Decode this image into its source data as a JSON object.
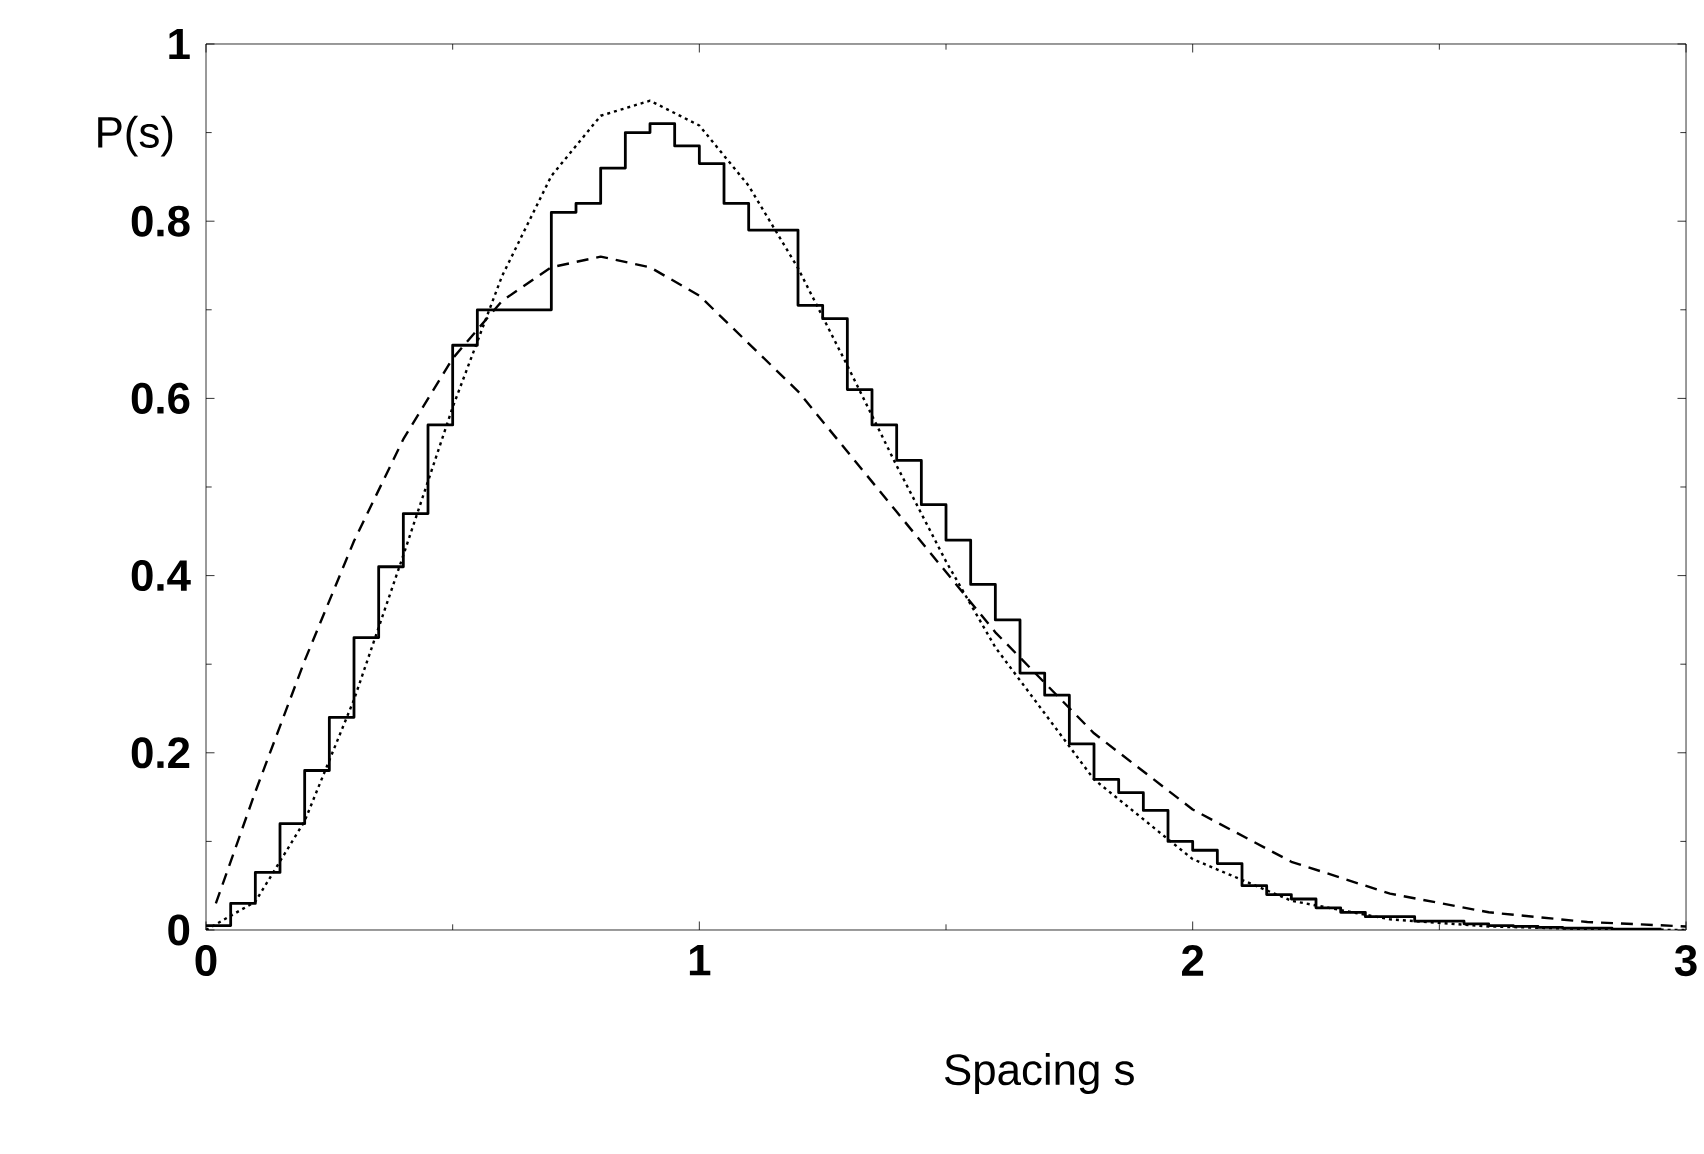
{
  "chart_data": {
    "type": "step",
    "xlabel": "Spacing s",
    "ylabel": "P(s)",
    "color": "#000000",
    "x": [
      0,
      0.05,
      0.1,
      0.15,
      0.2,
      0.25,
      0.3,
      0.35,
      0.4,
      0.45,
      0.5,
      0.55,
      0.6,
      0.65,
      0.7,
      0.75,
      0.8,
      0.85,
      0.9,
      0.95,
      1.0,
      1.05,
      1.1,
      1.15,
      1.2,
      1.25,
      1.3,
      1.35,
      1.4,
      1.45,
      1.5,
      1.55,
      1.6,
      1.65,
      1.7,
      1.75,
      1.8,
      1.85,
      1.9,
      1.95,
      2.0,
      2.05,
      2.1,
      2.15,
      2.2,
      2.25,
      2.3,
      2.35,
      2.4,
      2.45,
      2.5,
      2.55,
      2.6,
      2.65,
      2.7,
      2.75,
      2.8,
      2.85,
      2.9,
      2.95
    ],
    "values": [
      0.005,
      0.03,
      0.065,
      0.12,
      0.18,
      0.24,
      0.33,
      0.41,
      0.47,
      0.57,
      0.66,
      0.7,
      0.7,
      0.7,
      0.81,
      0.82,
      0.86,
      0.9,
      0.91,
      0.885,
      0.865,
      0.82,
      0.79,
      0.79,
      0.705,
      0.69,
      0.61,
      0.57,
      0.53,
      0.48,
      0.44,
      0.39,
      0.35,
      0.29,
      0.265,
      0.21,
      0.17,
      0.155,
      0.135,
      0.1,
      0.09,
      0.075,
      0.05,
      0.04,
      0.035,
      0.025,
      0.02,
      0.015,
      0.015,
      0.01,
      0.01,
      0.007,
      0.005,
      0.004,
      0.003,
      0.002,
      0.002,
      0.001,
      0.001,
      0.001
    ],
    "series": [
      {
        "type": "line",
        "line_style": "dotted",
        "color": "#000000",
        "x": [
          0,
          0.1,
          0.2,
          0.3,
          0.4,
          0.5,
          0.6,
          0.7,
          0.8,
          0.9,
          1.0,
          1.1,
          1.2,
          1.3,
          1.4,
          1.5,
          1.6,
          1.8,
          2.0,
          2.2,
          2.4,
          2.6,
          2.8,
          3.0
        ],
        "values": [
          0,
          0.032,
          0.123,
          0.26,
          0.423,
          0.59,
          0.738,
          0.851,
          0.919,
          0.936,
          0.908,
          0.84,
          0.747,
          0.637,
          0.524,
          0.416,
          0.319,
          0.17,
          0.08,
          0.033,
          0.012,
          0.004,
          0.001,
          0
        ]
      },
      {
        "type": "line",
        "line_style": "dashed",
        "color": "#000000",
        "x": [
          0.02,
          0.1,
          0.2,
          0.3,
          0.4,
          0.5,
          0.6,
          0.7,
          0.8,
          0.9,
          1.0,
          1.2,
          1.4,
          1.6,
          1.8,
          2.0,
          2.2,
          2.4,
          2.6,
          2.8,
          3.0
        ],
        "values": [
          0.03,
          0.156,
          0.304,
          0.439,
          0.554,
          0.645,
          0.71,
          0.748,
          0.76,
          0.748,
          0.716,
          0.608,
          0.472,
          0.336,
          0.222,
          0.136,
          0.077,
          0.041,
          0.02,
          0.009,
          0.004
        ]
      }
    ],
    "xlim": [
      0,
      3
    ],
    "ylim": [
      0,
      1
    ],
    "xticks": [
      0,
      1,
      2,
      3
    ],
    "yticks": [
      0,
      0.2,
      0.4,
      0.6,
      0.8,
      1
    ],
    "grid": false
  }
}
